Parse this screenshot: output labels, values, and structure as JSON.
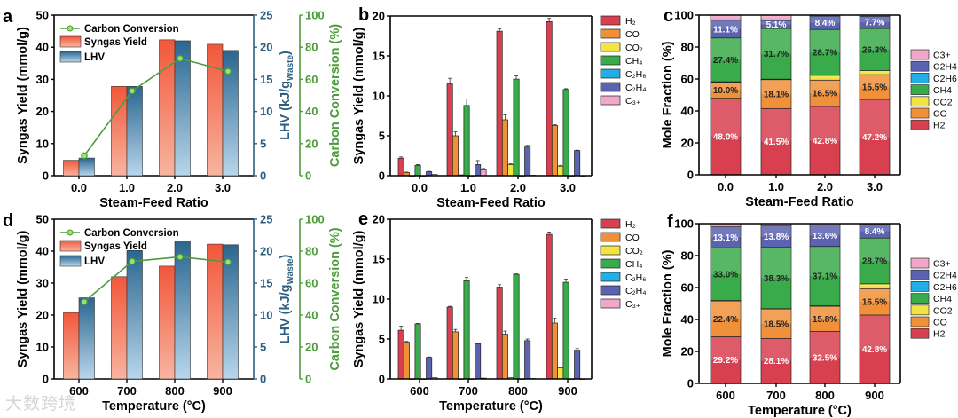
{
  "watermark": "大数跨境",
  "colors": {
    "H2": "#d9404f",
    "CO": "#f0913a",
    "CO2": "#f4e443",
    "CH4": "#3aab4b",
    "C2H6": "#22aee6",
    "C2H4": "#5b63b1",
    "C3+": "#f1a7c9",
    "syngas": "#f2603f",
    "lhv": "#2e6b94",
    "carbon": "#4d9c3b",
    "lhv_axis": "#2e5f80"
  },
  "chart_data": [
    {
      "panel": "a",
      "type": "bar+line",
      "categories": [
        "0.0",
        "1.0",
        "2.0",
        "3.0"
      ],
      "xlabel": "Steam-Feed Ratio",
      "ylabel": "Syngas Yield (mmol/g)",
      "ylim": [
        0,
        50
      ],
      "yticks": [
        0,
        10,
        20,
        30,
        40,
        50
      ],
      "y2label": {
        "main": "LHV (kJ/g",
        "sub": "Waste",
        "end": ")"
      },
      "y2lim": [
        0,
        25
      ],
      "y2ticks": [
        0,
        5,
        10,
        15,
        20,
        25
      ],
      "y3label": "Carbon Conversion (%)",
      "y3lim": [
        0,
        100
      ],
      "y3ticks": [
        0,
        20,
        40,
        60,
        80,
        100
      ],
      "legend": "top-left",
      "series": [
        {
          "name": "Syngas Yield",
          "axis": "left",
          "type": "bar",
          "values": [
            4.8,
            27.8,
            42.3,
            40.9
          ]
        },
        {
          "name": "LHV",
          "axis": "right",
          "type": "bar",
          "values": [
            2.75,
            13.9,
            21.0,
            19.5
          ]
        },
        {
          "name": "Carbon Conversion",
          "axis": "right2",
          "type": "line",
          "values": [
            12.5,
            52.8,
            73.0,
            65.0
          ]
        }
      ]
    },
    {
      "panel": "b",
      "type": "bar",
      "categories": [
        "0.0",
        "1.0",
        "2.0",
        "3.0"
      ],
      "xlabel": "Steam-Feed Ratio",
      "ylabel": "Syngas Yield (mmol/g)",
      "ylim": [
        0,
        20
      ],
      "yticks": [
        0,
        5,
        10,
        15,
        20
      ],
      "legend": "right",
      "series": [
        {
          "name": "H₂",
          "key": "H2",
          "values": [
            2.2,
            11.5,
            18.1,
            19.3
          ],
          "errors": [
            0.15,
            0.7,
            0.3,
            0.4
          ]
        },
        {
          "name": "CO",
          "key": "CO",
          "values": [
            0.4,
            5.0,
            7.0,
            6.3
          ],
          "errors": [
            0.05,
            0.5,
            0.6,
            0.1
          ]
        },
        {
          "name": "CO₂",
          "key": "CO2",
          "values": [
            0.0,
            0.1,
            1.4,
            1.2
          ],
          "errors": [
            0,
            0,
            0.1,
            0.1
          ]
        },
        {
          "name": "CH₄",
          "key": "CH4",
          "values": [
            1.3,
            8.8,
            12.1,
            10.8
          ],
          "errors": [
            0.1,
            0.8,
            0.4,
            0.1
          ]
        },
        {
          "name": "C₂H₆",
          "key": "C2H6",
          "values": [
            0.0,
            0.0,
            0.0,
            0.0
          ],
          "errors": [
            0,
            0,
            0,
            0
          ]
        },
        {
          "name": "C₂H₄",
          "key": "C2H4",
          "values": [
            0.5,
            1.4,
            3.6,
            3.15
          ],
          "errors": [
            0.05,
            0.5,
            0.2,
            0.05
          ]
        },
        {
          "name": "C₃₊",
          "key": "C3+",
          "values": [
            0.15,
            0.85,
            0.05,
            0.0
          ],
          "errors": [
            0,
            0.05,
            0,
            0
          ]
        }
      ]
    },
    {
      "panel": "c",
      "type": "stacked-bar",
      "categories": [
        "0.0",
        "1.0",
        "2.0",
        "3.0"
      ],
      "xlabel": "Steam-Feed Ratio",
      "ylabel": "Mole Fraction (%)",
      "ylim": [
        0,
        100
      ],
      "yticks": [
        0,
        20,
        40,
        60,
        80,
        100
      ],
      "legend": "right",
      "legend_order": [
        "C3+",
        "C2H4",
        "C2H6",
        "CH4",
        "CO2",
        "CO",
        "H2"
      ],
      "series": [
        {
          "name": "H2",
          "values": [
            48.0,
            41.5,
            42.8,
            47.2
          ],
          "labels": [
            "48.0%",
            "41.5%",
            "42.8%",
            "47.2%"
          ]
        },
        {
          "name": "CO",
          "values": [
            10.0,
            18.1,
            16.5,
            15.5
          ],
          "labels": [
            "10.0%",
            "18.1%",
            "16.5%",
            "15.5%"
          ]
        },
        {
          "name": "CO2",
          "values": [
            0.3,
            0.3,
            3.0,
            2.6
          ],
          "labels": [
            null,
            null,
            null,
            null
          ]
        },
        {
          "name": "CH4",
          "values": [
            27.4,
            31.7,
            28.7,
            26.3
          ],
          "labels": [
            "27.4%",
            "31.7%",
            "28.7%",
            "26.3%"
          ]
        },
        {
          "name": "C2H6",
          "values": [
            0,
            0,
            0,
            0
          ],
          "labels": [
            null,
            null,
            null,
            null
          ]
        },
        {
          "name": "C2H4",
          "values": [
            11.1,
            5.1,
            8.4,
            7.7
          ],
          "labels": [
            "11.1%",
            "5.1%",
            "8.4%",
            "7.7%"
          ]
        },
        {
          "name": "C3+",
          "values": [
            3.2,
            3.3,
            0.6,
            0.7
          ],
          "labels": [
            null,
            null,
            null,
            null
          ]
        }
      ]
    },
    {
      "panel": "d",
      "type": "bar+line",
      "categories": [
        "600",
        "700",
        "800",
        "900"
      ],
      "xlabel": "Temperature (°C)",
      "ylabel": "Syngas Yield (mmol/g)",
      "ylim": [
        0,
        50
      ],
      "yticks": [
        0,
        10,
        20,
        30,
        40,
        50
      ],
      "y2label": {
        "main": "LHV (kJ/g",
        "sub": "Waste",
        "end": ")"
      },
      "y2lim": [
        0,
        25
      ],
      "y2ticks": [
        0,
        5,
        10,
        15,
        20,
        25
      ],
      "y3label": "Carbon Conversion (%)",
      "y3lim": [
        0,
        100
      ],
      "y3ticks": [
        0,
        20,
        40,
        60,
        80,
        100
      ],
      "legend": "top-left",
      "series": [
        {
          "name": "Syngas Yield",
          "axis": "left",
          "type": "bar",
          "values": [
            20.8,
            32.0,
            35.3,
            42.2
          ]
        },
        {
          "name": "LHV",
          "axis": "right",
          "type": "bar",
          "values": [
            12.7,
            20.1,
            21.6,
            21.0
          ]
        },
        {
          "name": "Carbon Conversion",
          "axis": "right2",
          "type": "line",
          "values": [
            48.3,
            73.6,
            76.4,
            73.2
          ]
        }
      ]
    },
    {
      "panel": "e",
      "type": "bar",
      "categories": [
        "600",
        "700",
        "800",
        "900"
      ],
      "xlabel": "Temperature (°C)",
      "ylabel": "Syngas Yield (mmol/g)",
      "ylim": [
        0,
        20
      ],
      "yticks": [
        0,
        5,
        10,
        15,
        20
      ],
      "legend": "right",
      "series": [
        {
          "name": "H₂",
          "key": "H2",
          "values": [
            6.1,
            9.0,
            11.5,
            18.1
          ],
          "errors": [
            0.5,
            0.1,
            0.3,
            0.3
          ]
        },
        {
          "name": "CO",
          "key": "CO",
          "values": [
            4.6,
            5.9,
            5.6,
            7.0
          ],
          "errors": [
            0.1,
            0.3,
            0.4,
            0.6
          ]
        },
        {
          "name": "CO₂",
          "key": "CO2",
          "values": [
            0.0,
            0.0,
            0.15,
            1.4
          ],
          "errors": [
            0,
            0,
            0,
            0.1
          ]
        },
        {
          "name": "CH₄",
          "key": "CH4",
          "values": [
            6.9,
            12.3,
            13.1,
            12.1
          ],
          "errors": [
            0.05,
            0.4,
            0.05,
            0.4
          ]
        },
        {
          "name": "C₂H₆",
          "key": "C2H6",
          "values": [
            0.0,
            0.0,
            0.0,
            0.0
          ],
          "errors": [
            0,
            0,
            0,
            0
          ]
        },
        {
          "name": "C₂H₄",
          "key": "C2H4",
          "values": [
            2.7,
            4.4,
            4.8,
            3.6
          ],
          "errors": [
            0.05,
            0.05,
            0.2,
            0.2
          ]
        },
        {
          "name": "C₃₊",
          "key": "C3+",
          "values": [
            0.15,
            0.1,
            0.05,
            0.0
          ],
          "errors": [
            0,
            0,
            0,
            0
          ]
        }
      ]
    },
    {
      "panel": "f",
      "type": "stacked-bar",
      "categories": [
        "600",
        "700",
        "800",
        "900"
      ],
      "xlabel": "Temperature (°C)",
      "ylabel": "Mole Fraction (%)",
      "ylim": [
        0,
        100
      ],
      "yticks": [
        0,
        20,
        40,
        60,
        80,
        100
      ],
      "legend": "right",
      "legend_order": [
        "C3+",
        "C2H4",
        "C2H6",
        "CH4",
        "CO2",
        "CO",
        "H2"
      ],
      "series": [
        {
          "name": "H2",
          "values": [
            29.2,
            28.1,
            32.5,
            42.8
          ],
          "labels": [
            "29.2%",
            "28.1%",
            "32.5%",
            "42.8%"
          ]
        },
        {
          "name": "CO",
          "values": [
            22.4,
            18.5,
            15.8,
            16.5
          ],
          "labels": [
            "22.4%",
            "18.5%",
            "15.8%",
            "16.5%"
          ]
        },
        {
          "name": "CO2",
          "values": [
            0.3,
            0.2,
            0.3,
            3.0
          ],
          "labels": [
            null,
            null,
            null,
            null
          ]
        },
        {
          "name": "CH4",
          "values": [
            33.0,
            38.3,
            37.1,
            28.7
          ],
          "labels": [
            "33.0%",
            "38.3%",
            "37.1%",
            "28.7%"
          ]
        },
        {
          "name": "C2H6",
          "values": [
            0,
            0,
            0,
            0
          ],
          "labels": [
            null,
            null,
            null,
            null
          ]
        },
        {
          "name": "C2H4",
          "values": [
            13.1,
            13.8,
            13.6,
            8.4
          ],
          "labels": [
            "13.1%",
            "13.8%",
            "13.6%",
            "8.4%"
          ]
        },
        {
          "name": "C3+",
          "values": [
            2.0,
            1.1,
            0.7,
            0.6
          ],
          "labels": [
            null,
            null,
            null,
            null
          ]
        }
      ]
    }
  ]
}
